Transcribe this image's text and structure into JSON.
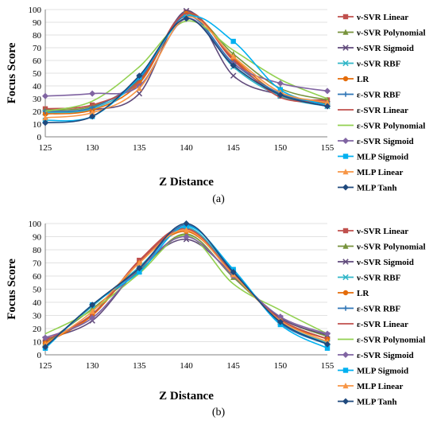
{
  "chart_data": [
    {
      "type": "line",
      "caption": "(a)",
      "xlabel": "Z Distance",
      "ylabel": "Focus Score",
      "x": [
        125,
        130,
        135,
        140,
        145,
        150,
        155
      ],
      "xlim": [
        125,
        155
      ],
      "ylim": [
        0,
        100
      ],
      "xticks": [
        "125",
        "130",
        "135",
        "140",
        "145",
        "150",
        "155"
      ],
      "yticks": [
        "0",
        "10",
        "20",
        "30",
        "40",
        "50",
        "60",
        "70",
        "80",
        "90",
        "100"
      ],
      "legend_position": "right",
      "series": [
        {
          "name": "ν-SVR Linear",
          "color": "#C0504D",
          "marker": "square",
          "values": [
            22,
            25,
            43,
            98,
            60,
            32,
            29
          ]
        },
        {
          "name": "ν-SVR Polynomial",
          "color": "#77933C",
          "marker": "triangle",
          "values": [
            21,
            24,
            45,
            96,
            65,
            38,
            29
          ]
        },
        {
          "name": "ν-SVR Sigmoid",
          "color": "#604A7B",
          "marker": "x",
          "values": [
            19,
            21,
            34,
            99,
            48,
            33,
            26
          ]
        },
        {
          "name": "ν-SVR RBF",
          "color": "#31B6C8",
          "marker": "x",
          "values": [
            19,
            22,
            44,
            96,
            55,
            32,
            24
          ]
        },
        {
          "name": "LR",
          "color": "#E46C0A",
          "marker": "circle",
          "values": [
            18,
            21,
            42,
            97,
            62,
            33,
            26
          ]
        },
        {
          "name": "ε-SVR RBF",
          "color": "#2E75B6",
          "marker": "plus",
          "values": [
            20,
            23,
            46,
            95,
            58,
            34,
            25
          ]
        },
        {
          "name": "ε-SVR Linear",
          "color": "#C0504D",
          "marker": "none",
          "values": [
            22,
            25,
            44,
            97,
            61,
            31,
            28
          ]
        },
        {
          "name": "ε-SVR Polynomial",
          "color": "#92D050",
          "marker": "none",
          "values": [
            20,
            28,
            55,
            91,
            68,
            45,
            30
          ]
        },
        {
          "name": "ε-SVR Sigmoid",
          "color": "#8064A2",
          "marker": "diamond",
          "values": [
            32,
            34,
            40,
            93,
            57,
            42,
            36
          ]
        },
        {
          "name": "MLP Sigmoid",
          "color": "#00B0F0",
          "marker": "square",
          "values": [
            13,
            16,
            47,
            94,
            75,
            37,
            25
          ]
        },
        {
          "name": "MLP Linear",
          "color": "#F79646",
          "marker": "triangle",
          "values": [
            15,
            19,
            38,
            94,
            63,
            35,
            27
          ]
        },
        {
          "name": "MLP Tanh",
          "color": "#1F497D",
          "marker": "diamond",
          "values": [
            11,
            16,
            48,
            93,
            56,
            33,
            24
          ]
        }
      ]
    },
    {
      "type": "line",
      "caption": "(b)",
      "xlabel": "Z Distance",
      "ylabel": "Focus Score",
      "x": [
        125,
        130,
        135,
        140,
        145,
        150,
        155
      ],
      "xlim": [
        125,
        155
      ],
      "ylim": [
        0,
        100
      ],
      "xticks": [
        "125",
        "130",
        "135",
        "140",
        "145",
        "150",
        "155"
      ],
      "yticks": [
        "0",
        "10",
        "20",
        "30",
        "40",
        "50",
        "60",
        "70",
        "80",
        "90",
        "100"
      ],
      "legend_position": "right",
      "series": [
        {
          "name": "ν-SVR Linear",
          "color": "#C0504D",
          "marker": "square",
          "values": [
            10,
            30,
            72,
            97,
            62,
            27,
            12
          ]
        },
        {
          "name": "ν-SVR Polynomial",
          "color": "#77933C",
          "marker": "triangle",
          "values": [
            9,
            35,
            64,
            92,
            59,
            28,
            14
          ]
        },
        {
          "name": "ν-SVR Sigmoid",
          "color": "#604A7B",
          "marker": "x",
          "values": [
            12,
            26,
            66,
            88,
            61,
            28,
            15
          ]
        },
        {
          "name": "ν-SVR RBF",
          "color": "#31B6C8",
          "marker": "x",
          "values": [
            7,
            37,
            67,
            97,
            63,
            25,
            9
          ]
        },
        {
          "name": "LR",
          "color": "#E46C0A",
          "marker": "circle",
          "values": [
            9,
            30,
            70,
            94,
            62,
            26,
            12
          ]
        },
        {
          "name": "ε-SVR RBF",
          "color": "#2E75B6",
          "marker": "plus",
          "values": [
            6,
            38,
            65,
            99,
            64,
            24,
            8
          ]
        },
        {
          "name": "ε-SVR Linear",
          "color": "#C0504D",
          "marker": "none",
          "values": [
            11,
            31,
            71,
            96,
            62,
            27,
            12
          ]
        },
        {
          "name": "ε-SVR Polynomial",
          "color": "#92D050",
          "marker": "none",
          "values": [
            16,
            34,
            62,
            91,
            54,
            34,
            16
          ]
        },
        {
          "name": "ε-SVR Sigmoid",
          "color": "#8064A2",
          "marker": "diamond",
          "values": [
            13,
            28,
            66,
            90,
            60,
            29,
            16
          ]
        },
        {
          "name": "MLP Sigmoid",
          "color": "#00B0F0",
          "marker": "square",
          "values": [
            5,
            38,
            63,
            98,
            65,
            23,
            5
          ]
        },
        {
          "name": "MLP Linear",
          "color": "#F79646",
          "marker": "triangle",
          "values": [
            8,
            33,
            70,
            95,
            61,
            26,
            10
          ]
        },
        {
          "name": "MLP Tanh",
          "color": "#1F497D",
          "marker": "diamond",
          "values": [
            6,
            38,
            66,
            100,
            63,
            25,
            8
          ]
        }
      ]
    }
  ]
}
